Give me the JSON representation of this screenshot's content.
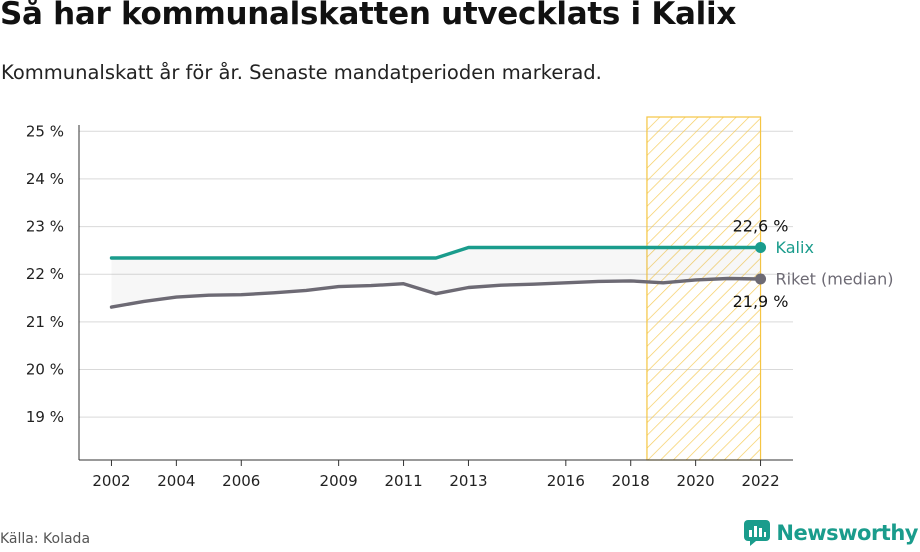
{
  "header": {
    "title": "Så har kommunalskatten utvecklats i Kalix",
    "subtitle": "Kommunalskatt år för år. Senaste mandatperioden markerad."
  },
  "footer": {
    "source": "Källa: Kolada",
    "brand": "Newsworthy",
    "brand_icon": "newsworthy-logo-icon"
  },
  "chart_data": {
    "type": "line",
    "title": "Så har kommunalskatten utvecklats i Kalix",
    "subtitle": "Kommunalskatt år för år. Senaste mandatperioden markerad.",
    "xlabel": "",
    "ylabel": "",
    "x": [
      2002,
      2003,
      2004,
      2005,
      2006,
      2007,
      2008,
      2009,
      2010,
      2011,
      2012,
      2013,
      2014,
      2015,
      2016,
      2017,
      2018,
      2019,
      2020,
      2021,
      2022
    ],
    "xticks": [
      2002,
      2004,
      2006,
      2009,
      2011,
      2013,
      2016,
      2018,
      2020,
      2022
    ],
    "xtick_labels": [
      "2002",
      "2004",
      "2006",
      "2009",
      "2011",
      "2013",
      "2016",
      "2018",
      "2020",
      "2022"
    ],
    "xlim": [
      2001.0,
      2023.0
    ],
    "yticks": [
      19,
      20,
      21,
      22,
      23,
      24,
      25
    ],
    "ytick_labels": [
      "19 %",
      "20 %",
      "21 %",
      "22 %",
      "23 %",
      "24 %",
      "25 %"
    ],
    "ylim": [
      18.1,
      25.3
    ],
    "grid": true,
    "highlight_period": [
      2018.5,
      2022
    ],
    "highlight_color": "#f5c542",
    "series": [
      {
        "name": "Kalix",
        "color": "#1a9c8c",
        "values": [
          22.34,
          22.34,
          22.34,
          22.34,
          22.34,
          22.34,
          22.34,
          22.34,
          22.34,
          22.34,
          22.34,
          22.56,
          22.56,
          22.56,
          22.56,
          22.56,
          22.56,
          22.56,
          22.56,
          22.56,
          22.56
        ],
        "end_value_label": "22,6 %"
      },
      {
        "name": "Riket (median)",
        "color": "#6d6a74",
        "values": [
          21.31,
          21.43,
          21.52,
          21.56,
          21.57,
          21.61,
          21.66,
          21.74,
          21.76,
          21.8,
          21.59,
          21.72,
          21.77,
          21.79,
          21.82,
          21.85,
          21.86,
          21.82,
          21.88,
          21.91,
          21.9
        ],
        "end_value_label": "21,9 %"
      }
    ]
  }
}
